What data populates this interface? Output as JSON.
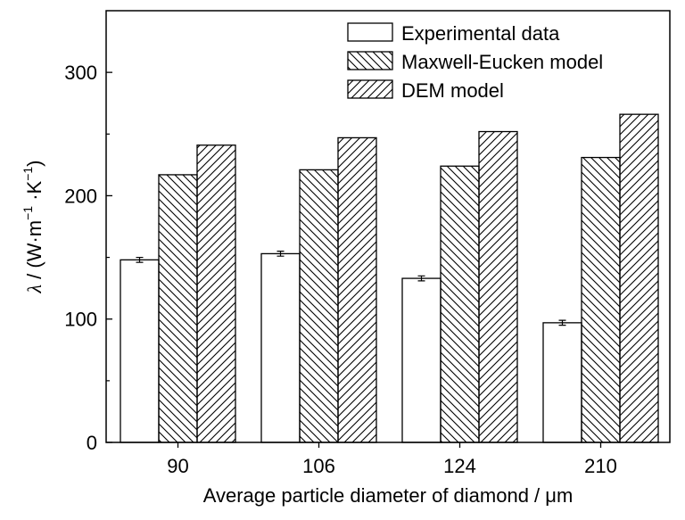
{
  "chart_data": {
    "type": "bar",
    "categories": [
      "90",
      "106",
      "124",
      "210"
    ],
    "series": [
      {
        "name": "Experimental data",
        "values": [
          148,
          153,
          133,
          97
        ],
        "errors": [
          2,
          2,
          2,
          2
        ],
        "pattern": "open"
      },
      {
        "name": "Maxwell-Eucken model",
        "values": [
          217,
          221,
          224,
          231
        ],
        "pattern": "backslash-hatch"
      },
      {
        "name": "DEM model",
        "values": [
          241,
          247,
          252,
          266
        ],
        "pattern": "slash-hatch"
      }
    ],
    "xlabel": "Average particle diameter of diamond / μm",
    "ylabel": {
      "lambda": "λ",
      "sep": " / (W·m",
      "sup1": "−1",
      "mid": " ·K",
      "sup2": "−1",
      "end": ")"
    },
    "ylim": [
      0,
      350
    ],
    "yticks": [
      0,
      100,
      200,
      300
    ],
    "legend_position": "top-right",
    "grid": false
  }
}
